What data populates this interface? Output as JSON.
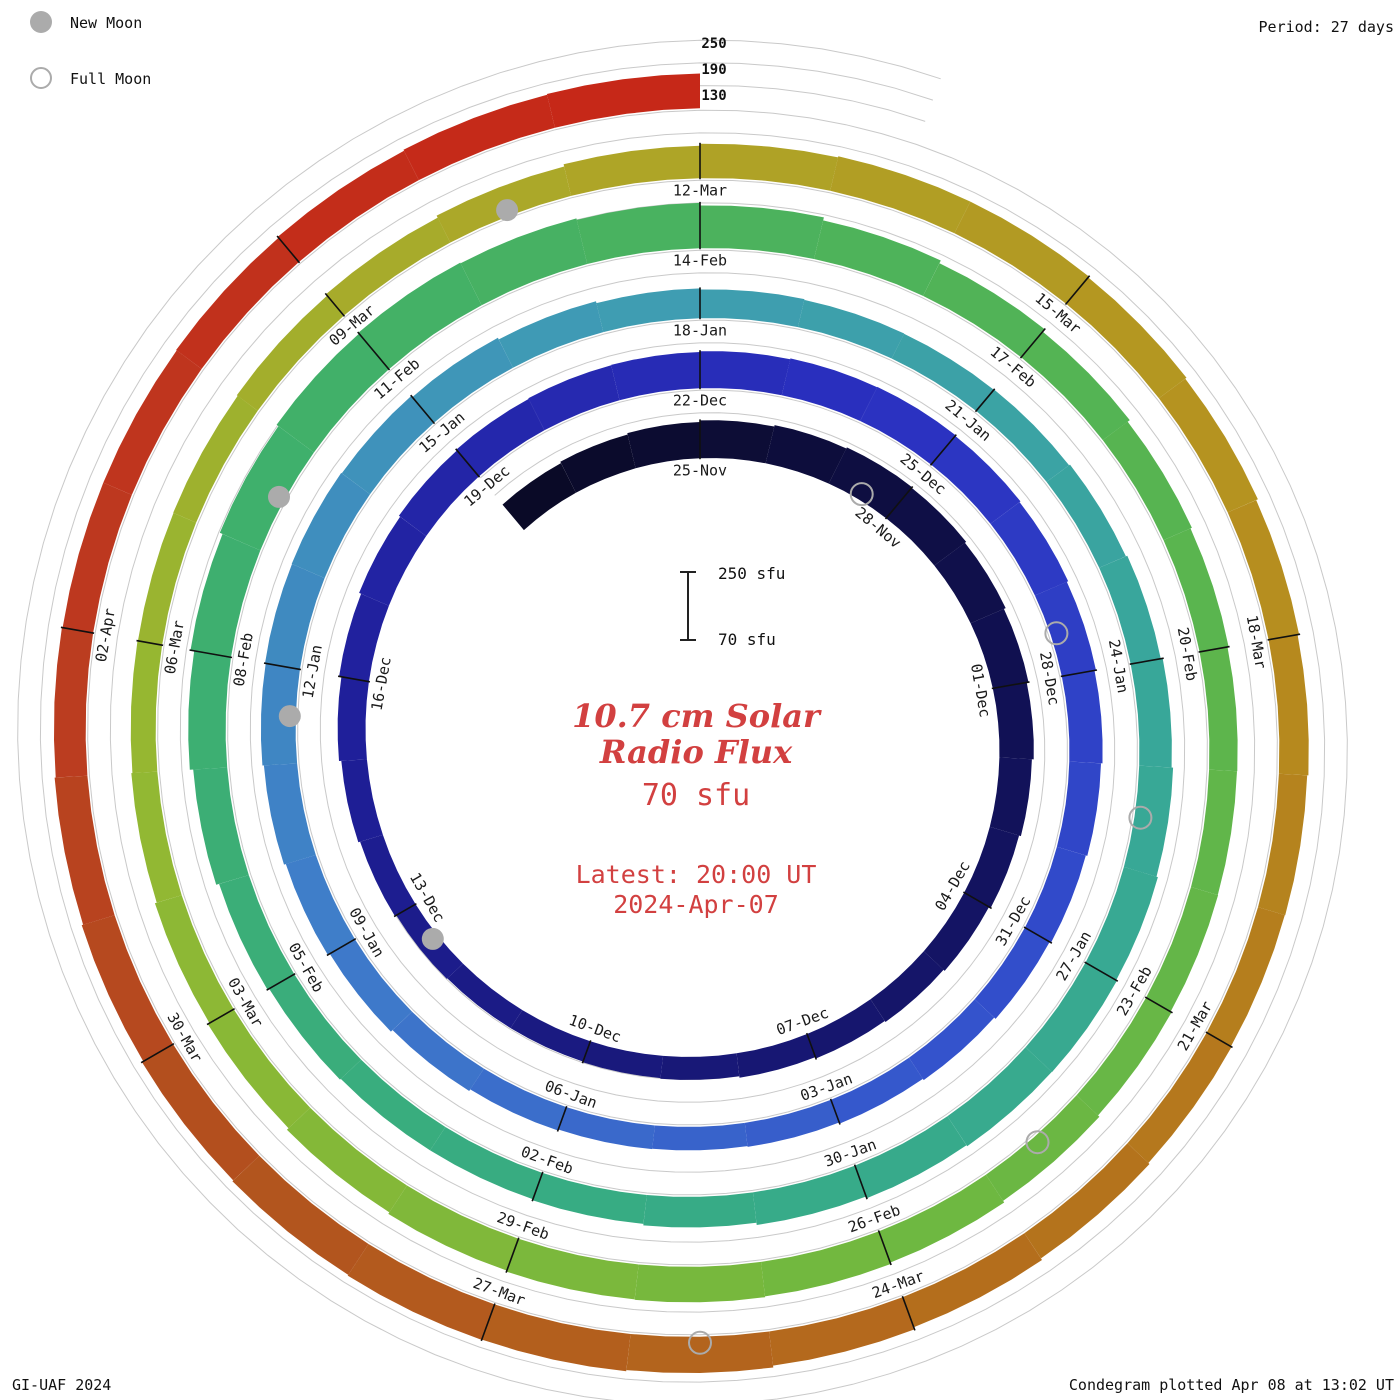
{
  "legend": {
    "new_moon_label": "New Moon",
    "full_moon_label": "Full Moon"
  },
  "period_label": "Period: 27 days",
  "radial_scale_labels": {
    "l250": "250",
    "l190": "190",
    "l130": "130"
  },
  "scale_bar": {
    "top_label": "250 sfu",
    "bottom_label": "70 sfu"
  },
  "center": {
    "title_line1": "10.7 cm Solar",
    "title_line2": "Radio Flux",
    "flux_value": "70 sfu",
    "latest_line1": "Latest: 20:00 UT",
    "latest_line2": "2024-Apr-07"
  },
  "credits": {
    "left": "GI-UAF 2024",
    "right": "Condegram plotted Apr 08 at 13:02 UT"
  },
  "colors": {
    "center_text": "#d24040",
    "moon_gray": "#ababab",
    "gridline": "#c9c9c9"
  },
  "chart_data": {
    "type": "bar",
    "layout": "spiral-condegram",
    "title": "10.7 cm Solar Radio Flux",
    "units": "sfu",
    "period_days": 27,
    "baseline_sfu": 70,
    "gridlines_sfu": [
      130,
      190,
      250
    ],
    "radial_tick_labels": [
      "250",
      "190",
      "130"
    ],
    "flux_start_date": "2023-11-22",
    "angle_zero_date": "2023-11-25",
    "latest_time": "20:00 UT 2024-Apr-07",
    "flux_sfu": [
      158,
      162,
      166,
      170,
      174,
      177,
      175,
      171,
      166,
      161,
      156,
      151,
      146,
      142,
      139,
      135,
      131,
      129,
      127,
      127,
      129,
      133,
      138,
      144,
      150,
      156,
      160,
      163,
      165,
      166,
      168,
      170,
      171,
      169,
      166,
      162,
      158,
      154,
      150,
      146,
      141,
      137,
      134,
      132,
      133,
      136,
      141,
      147,
      153,
      158,
      162,
      164,
      165,
      163,
      159,
      154,
      149,
      146,
      144,
      143,
      144,
      147,
      151,
      156,
      160,
      164,
      166,
      165,
      162,
      157,
      151,
      147,
      144,
      144,
      147,
      152,
      160,
      169,
      179,
      187,
      193,
      196,
      194,
      190,
      183,
      175,
      167,
      159,
      152,
      148,
      145,
      144,
      145,
      148,
      153,
      158,
      162,
      164,
      163,
      160,
      155,
      149,
      144,
      139,
      136,
      135,
      136,
      139,
      144,
      150,
      156,
      161,
      164,
      164,
      161,
      157,
      152,
      148,
      145,
      144,
      146,
      150,
      155,
      161,
      166,
      169,
      170,
      168,
      165,
      161,
      157,
      154,
      152,
      152,
      154,
      157,
      160,
      162
    ],
    "date_labels": [
      "25-Nov",
      "28-Nov",
      "01-Dec",
      "04-Dec",
      "07-Dec",
      "10-Dec",
      "13-Dec",
      "16-Dec",
      "19-Dec",
      "22-Dec",
      "25-Dec",
      "28-Dec",
      "31-Dec",
      "03-Jan",
      "06-Jan",
      "09-Jan",
      "12-Jan",
      "15-Jan",
      "18-Jan",
      "21-Jan",
      "24-Jan",
      "27-Jan",
      "30-Jan",
      "02-Feb",
      "05-Feb",
      "08-Feb",
      "11-Feb",
      "14-Feb",
      "17-Feb",
      "20-Feb",
      "23-Feb",
      "26-Feb",
      "29-Feb",
      "03-Mar",
      "06-Mar",
      "09-Mar",
      "12-Mar",
      "15-Mar",
      "18-Mar",
      "21-Mar",
      "24-Mar",
      "27-Mar",
      "30-Mar",
      "02-Apr"
    ],
    "moons": {
      "new": [
        "2023-12-12",
        "2024-01-11",
        "2024-02-09",
        "2024-03-10"
      ],
      "full": [
        "2023-11-27",
        "2023-12-27",
        "2024-01-25",
        "2024-02-24",
        "2024-03-25"
      ]
    },
    "color_stops": [
      [
        0,
        "#0a0a24"
      ],
      [
        8,
        "#10104e"
      ],
      [
        16,
        "#171775"
      ],
      [
        24,
        "#20209c"
      ],
      [
        32,
        "#2a30c0"
      ],
      [
        40,
        "#3350cc"
      ],
      [
        48,
        "#3f7cca"
      ],
      [
        56,
        "#3f9cb4"
      ],
      [
        64,
        "#38a897"
      ],
      [
        72,
        "#37ac82"
      ],
      [
        80,
        "#40b06a"
      ],
      [
        88,
        "#55b452"
      ],
      [
        96,
        "#70b840"
      ],
      [
        104,
        "#94b832"
      ],
      [
        110,
        "#ada728"
      ],
      [
        116,
        "#b6911f"
      ],
      [
        122,
        "#b4701c"
      ],
      [
        128,
        "#b2521e"
      ],
      [
        132,
        "#bc3a20"
      ],
      [
        137,
        "#c62818"
      ]
    ]
  }
}
